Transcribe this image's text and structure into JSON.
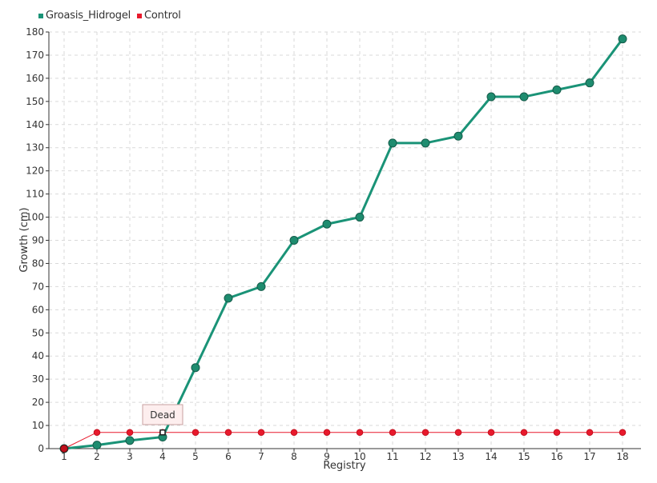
{
  "chart_data": {
    "type": "line",
    "title": "",
    "xlabel": "Registry",
    "ylabel": "Growth (cm)",
    "x": [
      "1",
      "2",
      "3",
      "4",
      "5",
      "6",
      "7",
      "8",
      "9",
      "10",
      "11",
      "12",
      "13",
      "14",
      "15",
      "16",
      "17",
      "18"
    ],
    "ylim": [
      0,
      180
    ],
    "ytick_step": 10,
    "grid": true,
    "legend_position": "top-left",
    "series": [
      {
        "name": "Groasis_Hidrogel",
        "color": "#1a9377",
        "values": [
          0,
          1.5,
          3.5,
          5,
          35,
          65,
          70,
          90,
          97,
          100,
          132,
          132,
          135,
          152,
          152,
          155,
          158,
          177
        ]
      },
      {
        "name": "Control",
        "color": "#e8192c",
        "values": [
          0,
          7,
          7,
          7,
          7,
          7,
          7,
          7,
          7,
          7,
          7,
          7,
          7,
          7,
          7,
          7,
          7,
          7
        ]
      }
    ],
    "annotations": [
      {
        "text": "Dead",
        "x": "4",
        "y": 7,
        "series": "Control"
      }
    ]
  }
}
